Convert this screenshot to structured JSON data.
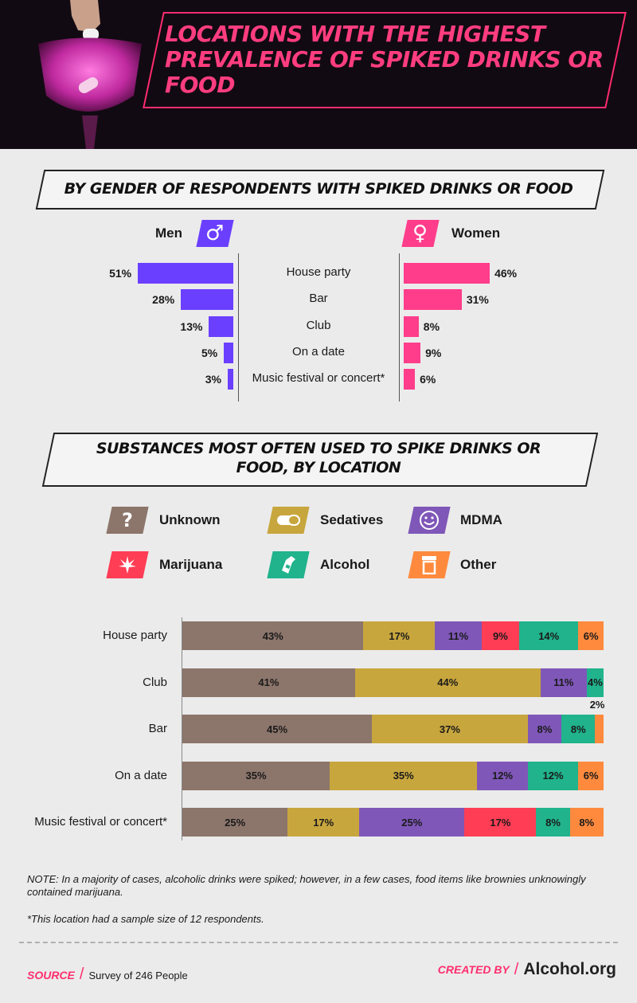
{
  "header": {
    "title": "LOCATIONS WITH THE HIGHEST PREVALENCE OF SPIKED DRINKS OR FOOD"
  },
  "gender_section": {
    "title": "BY GENDER OF RESPONDENTS WITH SPIKED DRINKS OR FOOD",
    "men_label": "Men",
    "women_label": "Women",
    "men_symbol": "♂",
    "women_symbol": "♀",
    "men_color": "#6b3fff",
    "women_color": "#ff3d8b"
  },
  "substance_section": {
    "title": "SUBSTANCES MOST OFTEN USED TO SPIKE DRINKS OR FOOD, BY LOCATION",
    "legend": [
      {
        "name": "Unknown",
        "color": "#8c756b",
        "icon": "question-icon"
      },
      {
        "name": "Sedatives",
        "color": "#c8a63e",
        "icon": "pill-icon"
      },
      {
        "name": "MDMA",
        "color": "#7f57b8",
        "icon": "smiley-icon"
      },
      {
        "name": "Marijuana",
        "color": "#ff3d55",
        "icon": "leaf-icon"
      },
      {
        "name": "Alcohol",
        "color": "#20b38c",
        "icon": "bottle-icon"
      },
      {
        "name": "Other",
        "color": "#ff8a3d",
        "icon": "jar-icon"
      }
    ]
  },
  "chart_data": [
    {
      "type": "bar",
      "orientation": "horizontal",
      "categories": [
        "House party",
        "Bar",
        "Club",
        "On a date",
        "Music festival or concert*"
      ],
      "series": [
        {
          "name": "Men",
          "values": [
            51,
            28,
            13,
            5,
            3
          ]
        },
        {
          "name": "Women",
          "values": [
            46,
            31,
            8,
            9,
            6
          ]
        }
      ]
    },
    {
      "type": "bar",
      "orientation": "horizontal",
      "stacked": true,
      "categories": [
        "House party",
        "Club",
        "Bar",
        "On a date",
        "Music festival or concert*"
      ],
      "series": [
        {
          "name": "Unknown",
          "values": [
            43,
            41,
            45,
            35,
            25
          ]
        },
        {
          "name": "Sedatives",
          "values": [
            17,
            44,
            37,
            35,
            17
          ]
        },
        {
          "name": "MDMA",
          "values": [
            11,
            11,
            8,
            12,
            25
          ]
        },
        {
          "name": "Marijuana",
          "values": [
            9,
            0,
            0,
            0,
            17
          ]
        },
        {
          "name": "Alcohol",
          "values": [
            14,
            4,
            8,
            12,
            8
          ]
        },
        {
          "name": "Other",
          "values": [
            6,
            0,
            2,
            6,
            8
          ]
        }
      ]
    }
  ],
  "notes": {
    "note1": "NOTE: In a majority of cases, alcoholic drinks were spiked; however, in a few cases, food items like brownies unknowingly contained marijuana.",
    "note2": "*This location had a sample size of 12 respondents."
  },
  "footer": {
    "source_label": "SOURCE",
    "source_text": "Survey of 246 People",
    "created_label": "CREATED BY",
    "brand": "Alcohol.org"
  }
}
